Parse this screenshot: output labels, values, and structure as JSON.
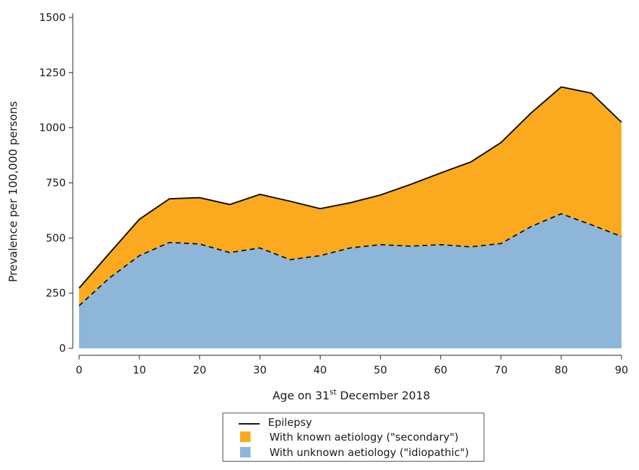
{
  "chart_data": {
    "type": "area",
    "xlabel_main": "Age on 31",
    "xlabel_sup": "st",
    "xlabel_rest": " December 2018",
    "ylabel": "Prevalence per 100,000 persons",
    "xlim": [
      0,
      90
    ],
    "ylim": [
      0,
      1500
    ],
    "xticks": [
      "0",
      "10",
      "20",
      "30",
      "40",
      "50",
      "60",
      "70",
      "80",
      "90"
    ],
    "yticks": [
      "0",
      "250",
      "500",
      "750",
      "1000",
      "1250",
      "1500"
    ],
    "x": [
      0,
      5,
      10,
      15,
      20,
      25,
      30,
      35,
      40,
      45,
      50,
      55,
      60,
      65,
      70,
      75,
      80,
      85,
      90
    ],
    "series": [
      {
        "name": "Epilepsy",
        "style": "solid-line",
        "color": "#111111",
        "values": [
          273,
          430,
          585,
          678,
          683,
          652,
          698,
          667,
          633,
          660,
          695,
          743,
          795,
          845,
          933,
          1067,
          1185,
          1157,
          1025
        ]
      },
      {
        "name": "With known aetiology (\"secondary\")",
        "style": "stacked-area-top",
        "color": "#FBAA1F",
        "values": [
          80,
          112,
          165,
          198,
          210,
          218,
          243,
          265,
          213,
          205,
          225,
          280,
          325,
          385,
          458,
          515,
          575,
          597,
          518
        ]
      },
      {
        "name": "With unknown aetiology (\"idiopathic\")",
        "style": "stacked-area-bottom-dashed-edge",
        "color": "#8DB6D8",
        "values": [
          193,
          318,
          420,
          480,
          473,
          434,
          455,
          402,
          420,
          455,
          470,
          463,
          470,
          460,
          475,
          552,
          610,
          560,
          507
        ]
      }
    ]
  }
}
